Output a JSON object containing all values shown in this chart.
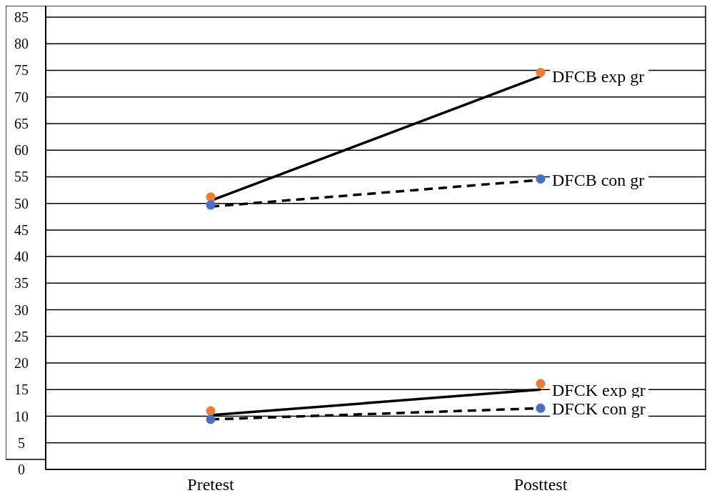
{
  "chart_data": {
    "type": "line",
    "categories": [
      "Pretest",
      "Posttest"
    ],
    "ylim": [
      0,
      85
    ],
    "yticks": [
      0,
      5,
      10,
      15,
      20,
      25,
      30,
      35,
      40,
      45,
      50,
      55,
      60,
      65,
      70,
      75,
      80,
      85
    ],
    "grid": "y",
    "series": [
      {
        "name": "DFCB exp gr",
        "color": "#000000",
        "line_style": "solid",
        "marker": "none",
        "values": [
          50.5,
          73.9
        ]
      },
      {
        "name": "DFCB con gr",
        "color": "#000000",
        "line_style": "dashed",
        "marker": "none",
        "values": [
          49.4,
          54.4
        ]
      },
      {
        "name": "DFCK exp gr",
        "color": "#000000",
        "line_style": "solid",
        "marker": "none",
        "values": [
          10.2,
          15.0
        ]
      },
      {
        "name": "DFCK con gr",
        "color": "#000000",
        "line_style": "dashed",
        "marker": "none",
        "values": [
          9.4,
          11.5
        ]
      },
      {
        "type": "scatter",
        "color": "#ed7d31",
        "marker": "circle",
        "x": [
          "Pretest",
          "Posttest",
          "Pretest",
          "Posttest"
        ],
        "values": [
          51.2,
          74.6,
          11.0,
          16.1
        ]
      },
      {
        "type": "scatter",
        "color": "#4472c4",
        "marker": "circle",
        "x": [
          "Pretest",
          "Posttest",
          "Pretest",
          "Posttest"
        ],
        "values": [
          49.7,
          54.6,
          9.4,
          11.5
        ]
      }
    ]
  }
}
